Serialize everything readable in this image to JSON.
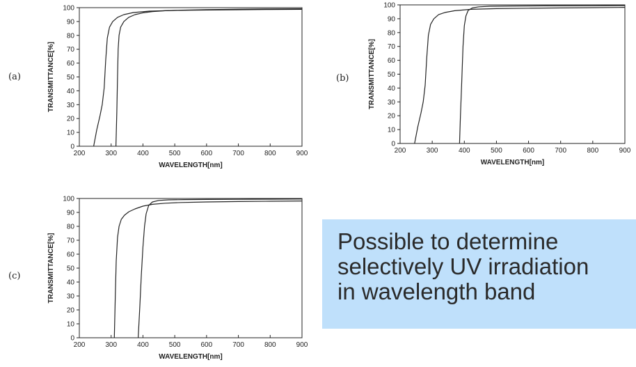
{
  "note": {
    "lines": [
      "Possible to determine",
      "selectively UV irradiation",
      "in wavelength band"
    ],
    "background": "#bfe0fb"
  },
  "chart_data": [
    {
      "panel": "(a)",
      "type": "line",
      "xlabel": "WAVELENGTH[nm]",
      "ylabel": "TRANSMITTANCE[%]",
      "xlim": [
        200,
        900
      ],
      "ylim": [
        0,
        100
      ],
      "xticks": [
        200,
        300,
        400,
        500,
        600,
        700,
        800,
        900
      ],
      "yticks": [
        0,
        10,
        20,
        30,
        40,
        50,
        60,
        70,
        80,
        90,
        100
      ],
      "grid": false,
      "series": [
        {
          "x": [
            245,
            255,
            265,
            272,
            278,
            283,
            288,
            295,
            305,
            320,
            340,
            370,
            420,
            500,
            600,
            700,
            800,
            900
          ],
          "y": [
            0,
            12,
            22,
            30,
            42,
            62,
            78,
            86,
            90,
            93,
            95,
            96.5,
            97.5,
            98,
            98.3,
            98.5,
            98.7,
            98.8
          ]
        },
        {
          "x": [
            315,
            318,
            320,
            322,
            325,
            330,
            340,
            355,
            375,
            400,
            430,
            470,
            520,
            600,
            700,
            800,
            900
          ],
          "y": [
            0,
            25,
            50,
            70,
            80,
            86,
            90,
            93,
            95,
            96.3,
            97.2,
            97.8,
            98.2,
            98.6,
            98.9,
            99.1,
            99.2
          ]
        }
      ]
    },
    {
      "panel": "(b)",
      "type": "line",
      "xlabel": "WAVELENGTH[nm]",
      "ylabel": "TRANSMITTANCE[%]",
      "xlim": [
        200,
        900
      ],
      "ylim": [
        0,
        100
      ],
      "xticks": [
        200,
        300,
        400,
        500,
        600,
        700,
        800,
        900
      ],
      "yticks": [
        0,
        10,
        20,
        30,
        40,
        50,
        60,
        70,
        80,
        90,
        100
      ],
      "grid": false,
      "series": [
        {
          "x": [
            245,
            255,
            265,
            272,
            278,
            283,
            288,
            295,
            305,
            320,
            340,
            370,
            420,
            500,
            600,
            700,
            800,
            900
          ],
          "y": [
            0,
            12,
            22,
            30,
            42,
            62,
            78,
            86,
            90,
            93,
            94.5,
            95.8,
            96.8,
            97.3,
            97.6,
            97.8,
            98,
            98.2
          ]
        },
        {
          "x": [
            385,
            388,
            392,
            396,
            400,
            405,
            412,
            425,
            445,
            480,
            550,
            650,
            800,
            900
          ],
          "y": [
            0,
            20,
            45,
            70,
            85,
            92,
            96,
            97.8,
            98.6,
            99,
            99.2,
            99.3,
            99.4,
            99.5
          ]
        }
      ]
    },
    {
      "panel": "(c)",
      "type": "line",
      "xlabel": "WAVELENGTH[nm]",
      "ylabel": "TRANSMITTANCE[%]",
      "xlim": [
        200,
        900
      ],
      "ylim": [
        0,
        100
      ],
      "xticks": [
        200,
        300,
        400,
        500,
        600,
        700,
        800,
        900
      ],
      "yticks": [
        0,
        10,
        20,
        30,
        40,
        50,
        60,
        70,
        80,
        90,
        100
      ],
      "grid": false,
      "series": [
        {
          "x": [
            310,
            313,
            316,
            320,
            325,
            332,
            342,
            356,
            375,
            400,
            430,
            470,
            520,
            600,
            700,
            800,
            900
          ],
          "y": [
            0,
            30,
            55,
            72,
            80,
            85,
            88,
            90.5,
            92.5,
            94.5,
            95.8,
            96.6,
            97.1,
            97.5,
            97.8,
            98,
            98.2
          ]
        },
        {
          "x": [
            385,
            390,
            395,
            400,
            405,
            410,
            418,
            430,
            450,
            480,
            530,
            600,
            700,
            800,
            900
          ],
          "y": [
            0,
            22,
            45,
            65,
            80,
            89,
            95,
            97.5,
            98.6,
            99,
            99.2,
            99.3,
            99.4,
            99.5,
            99.6
          ]
        }
      ]
    }
  ]
}
